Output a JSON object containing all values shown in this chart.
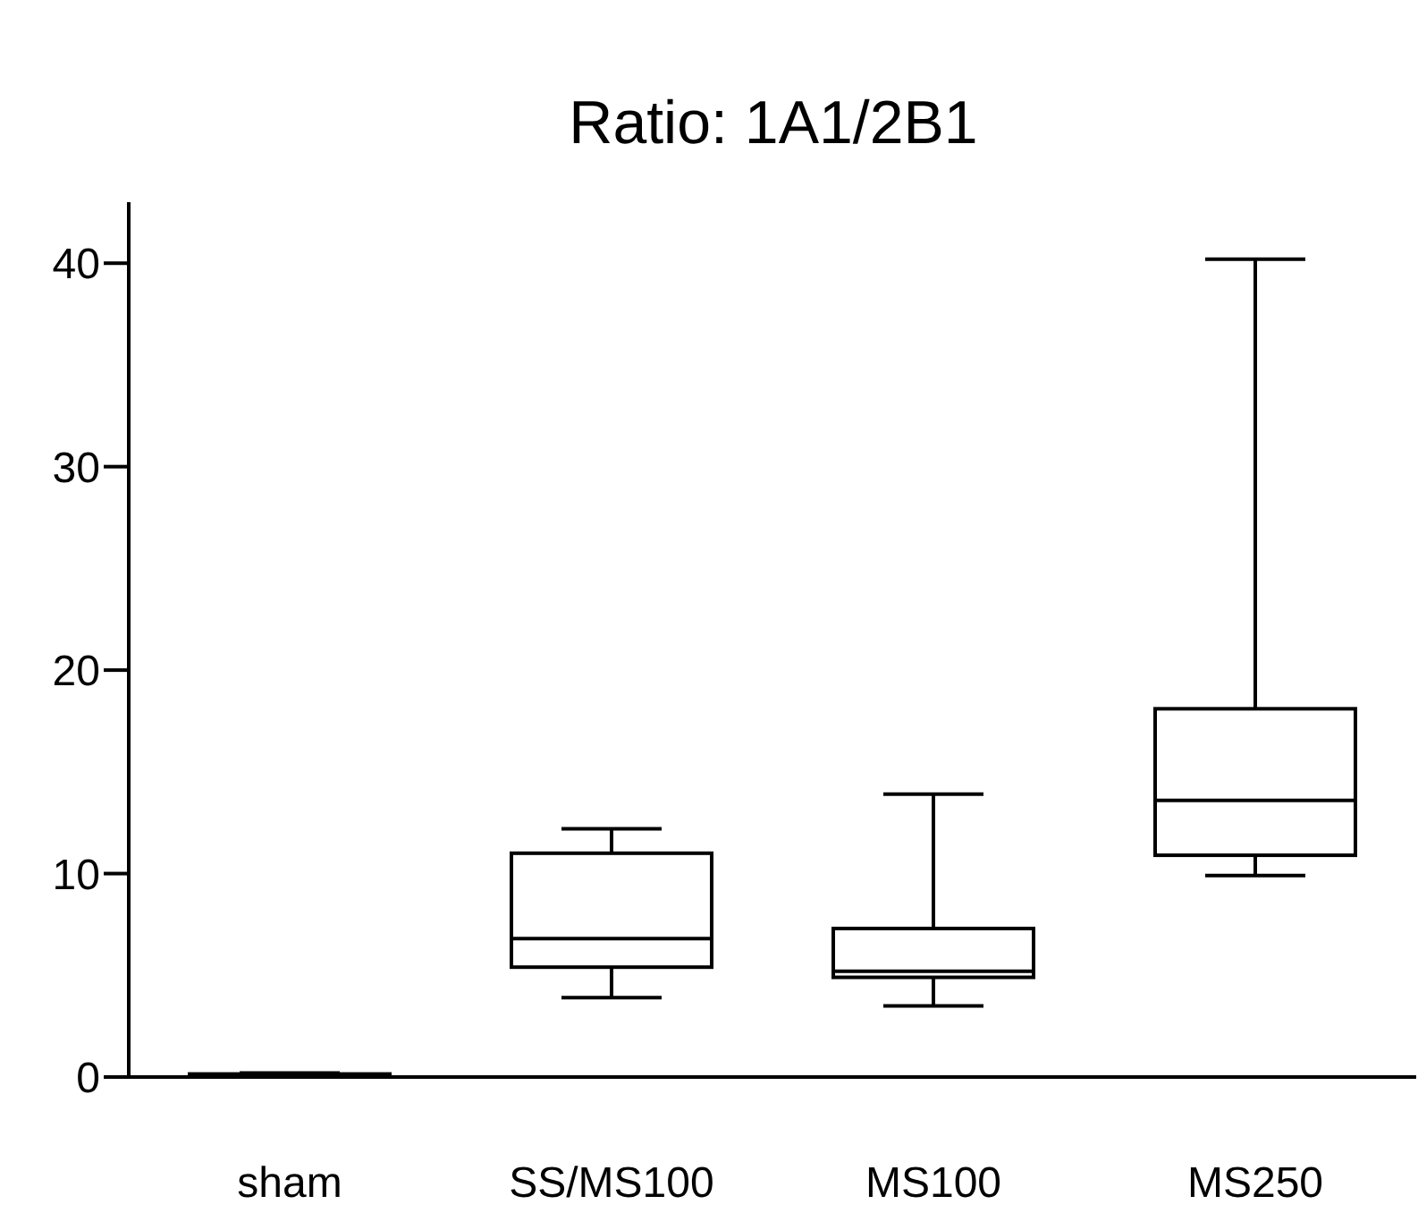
{
  "chart_data": {
    "type": "box",
    "title": "Ratio: 1A1/2B1",
    "categories": [
      "sham",
      "SS/MS100",
      "MS100",
      "MS250"
    ],
    "boxes": [
      {
        "low": 0.05,
        "q1": 0.08,
        "median": 0.1,
        "q3": 0.15,
        "high": 0.2
      },
      {
        "low": 3.9,
        "q1": 5.4,
        "median": 6.8,
        "q3": 11.0,
        "high": 12.2
      },
      {
        "low": 3.5,
        "q1": 4.9,
        "median": 5.2,
        "q3": 7.3,
        "high": 13.9
      },
      {
        "low": 9.9,
        "q1": 10.9,
        "median": 13.6,
        "q3": 18.1,
        "high": 40.2
      }
    ],
    "color": "#000000",
    "ylim": [
      0,
      43
    ],
    "yticks": [
      0,
      10,
      20,
      30,
      40
    ],
    "grid": false,
    "legend": false
  }
}
